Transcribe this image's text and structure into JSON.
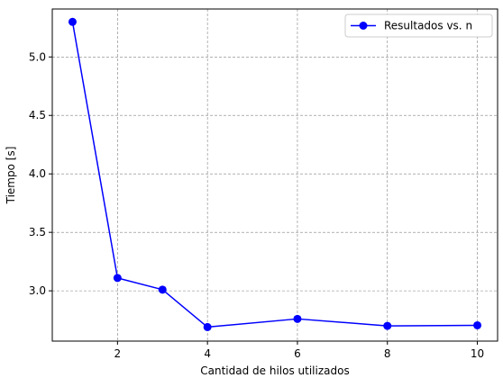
{
  "chart_data": {
    "type": "line",
    "title": "",
    "xlabel": "Cantidad de hilos utilizados",
    "ylabel": "Tiempo [s]",
    "xlim": [
      0.55,
      10.45
    ],
    "ylim": [
      2.57,
      5.41
    ],
    "xticks": [
      2,
      4,
      6,
      8,
      10
    ],
    "yticks": [
      3.0,
      3.5,
      4.0,
      4.5,
      5.0
    ],
    "xtick_labels": [
      "2",
      "4",
      "6",
      "8",
      "10"
    ],
    "ytick_labels": [
      "3.0",
      "3.5",
      "4.0",
      "4.5",
      "5.0"
    ],
    "grid": true,
    "legend_position": "top-right",
    "series": [
      {
        "name": "Resultados vs. n",
        "color": "#0000ff",
        "marker": "circle",
        "x": [
          1,
          2,
          3,
          4,
          6,
          8,
          10
        ],
        "y": [
          5.3,
          3.11,
          3.01,
          2.69,
          2.76,
          2.7,
          2.705
        ]
      }
    ]
  }
}
